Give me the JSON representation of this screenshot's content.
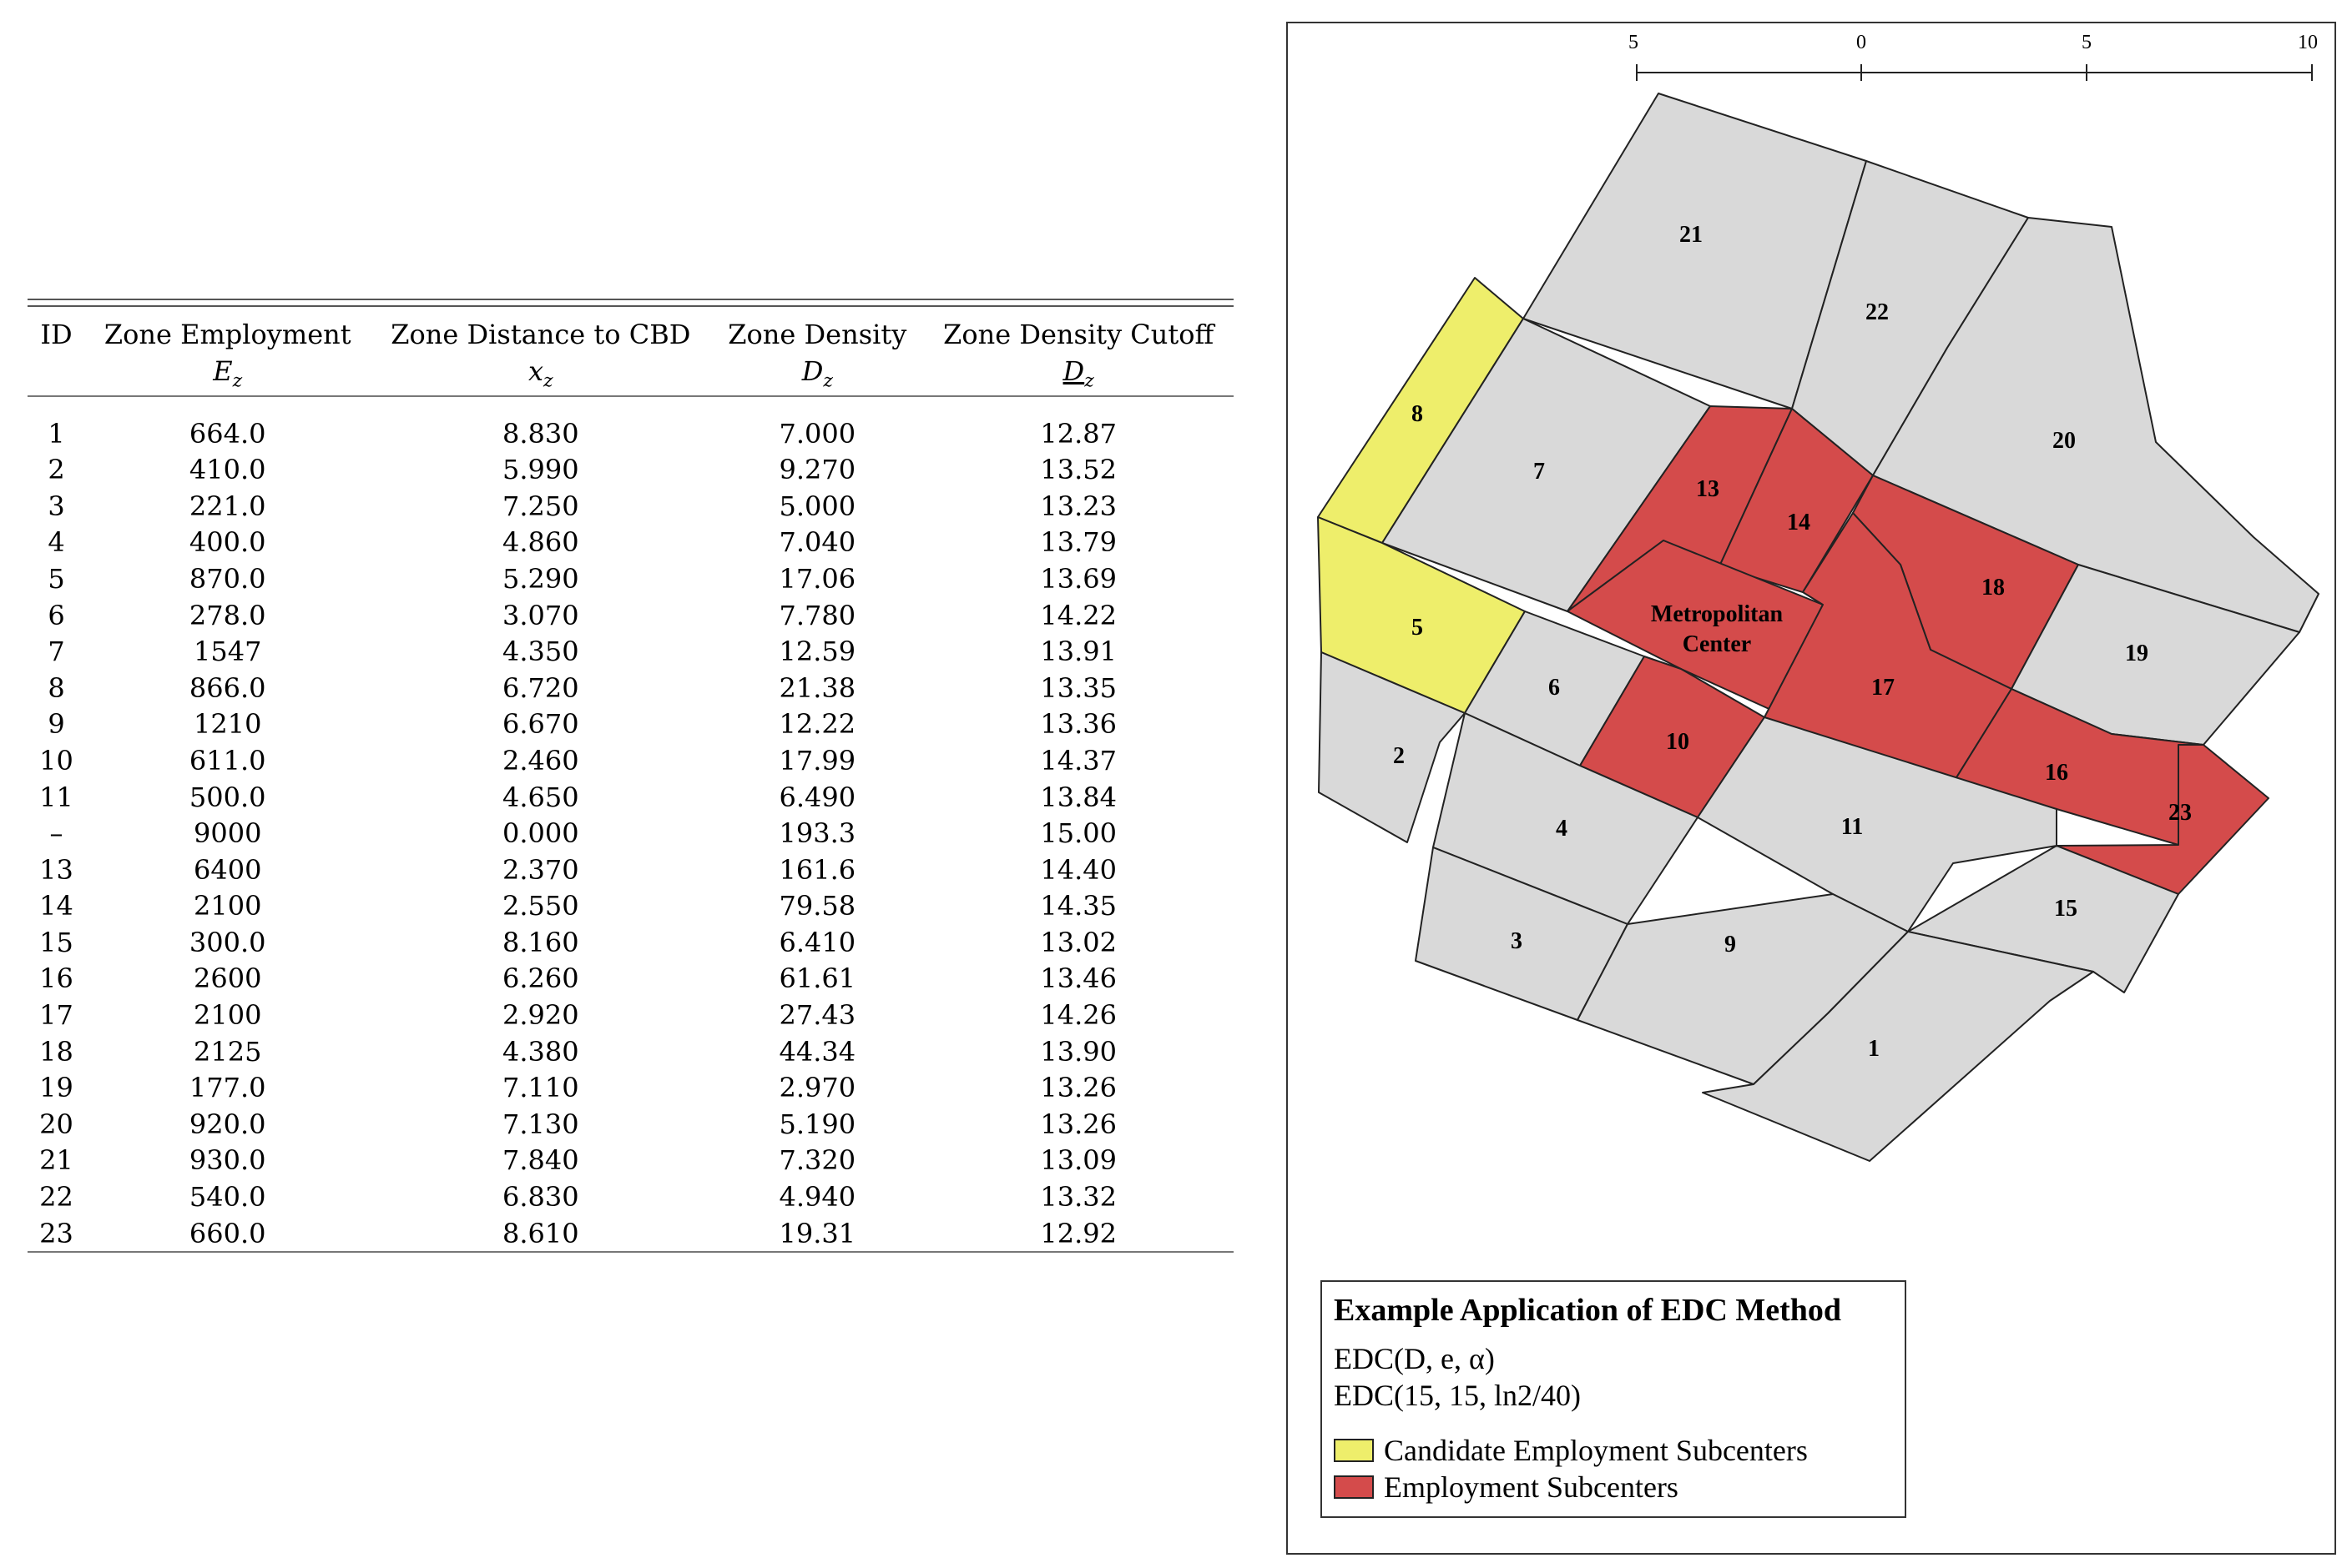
{
  "table": {
    "headers": [
      {
        "top": "ID",
        "sym": ""
      },
      {
        "top": "Zone Employment",
        "sym": "E",
        "sub": "z"
      },
      {
        "top": "Zone Distance to CBD",
        "sym": "x",
        "sub": "z"
      },
      {
        "top": "Zone Density",
        "sym": "D",
        "sub": "z"
      },
      {
        "top": "Zone Density Cutoff",
        "sym": "D",
        "sub": "z"
      }
    ],
    "rows": [
      [
        "1",
        "664.0",
        "8.830",
        "7.000",
        "12.87"
      ],
      [
        "2",
        "410.0",
        "5.990",
        "9.270",
        "13.52"
      ],
      [
        "3",
        "221.0",
        "7.250",
        "5.000",
        "13.23"
      ],
      [
        "4",
        "400.0",
        "4.860",
        "7.040",
        "13.79"
      ],
      [
        "5",
        "870.0",
        "5.290",
        "17.06",
        "13.69"
      ],
      [
        "6",
        "278.0",
        "3.070",
        "7.780",
        "14.22"
      ],
      [
        "7",
        "1547",
        "4.350",
        "12.59",
        "13.91"
      ],
      [
        "8",
        "866.0",
        "6.720",
        "21.38",
        "13.35"
      ],
      [
        "9",
        "1210",
        "6.670",
        "12.22",
        "13.36"
      ],
      [
        "10",
        "611.0",
        "2.460",
        "17.99",
        "14.37"
      ],
      [
        "11",
        "500.0",
        "4.650",
        "6.490",
        "13.84"
      ],
      [
        "–",
        "9000",
        "0.000",
        "193.3",
        "15.00"
      ],
      [
        "13",
        "6400",
        "2.370",
        "161.6",
        "14.40"
      ],
      [
        "14",
        "2100",
        "2.550",
        "79.58",
        "14.35"
      ],
      [
        "15",
        "300.0",
        "8.160",
        "6.410",
        "13.02"
      ],
      [
        "16",
        "2600",
        "6.260",
        "61.61",
        "13.46"
      ],
      [
        "17",
        "2100",
        "2.920",
        "27.43",
        "14.26"
      ],
      [
        "18",
        "2125",
        "4.380",
        "44.34",
        "13.90"
      ],
      [
        "19",
        "177.0",
        "7.110",
        "2.970",
        "13.26"
      ],
      [
        "20",
        "920.0",
        "7.130",
        "5.190",
        "13.26"
      ],
      [
        "21",
        "930.0",
        "7.840",
        "7.320",
        "13.09"
      ],
      [
        "22",
        "540.0",
        "6.830",
        "4.940",
        "13.32"
      ],
      [
        "23",
        "660.0",
        "8.610",
        "19.31",
        "12.92"
      ]
    ]
  },
  "map": {
    "scale_ticks": [
      "5",
      "0",
      "5",
      "10"
    ],
    "colors": {
      "zone": "#d9d9d9",
      "candidate": "#eeee6b",
      "subcenter": "#d44b4b"
    },
    "zones": [
      {
        "id": "21",
        "label": "21",
        "status": "none"
      },
      {
        "id": "22",
        "label": "22",
        "status": "none"
      },
      {
        "id": "20",
        "label": "20",
        "status": "none"
      },
      {
        "id": "8",
        "label": "8",
        "status": "candidate"
      },
      {
        "id": "7",
        "label": "7",
        "status": "none"
      },
      {
        "id": "13",
        "label": "13",
        "status": "subcenter"
      },
      {
        "id": "14",
        "label": "14",
        "status": "subcenter"
      },
      {
        "id": "18",
        "label": "18",
        "status": "subcenter"
      },
      {
        "id": "19",
        "label": "19",
        "status": "none"
      },
      {
        "id": "5",
        "label": "5",
        "status": "candidate"
      },
      {
        "id": "mc",
        "label_line1": "Metropolitan",
        "label_line2": "Center",
        "status": "subcenter"
      },
      {
        "id": "17",
        "label": "17",
        "status": "subcenter"
      },
      {
        "id": "6",
        "label": "6",
        "status": "none"
      },
      {
        "id": "10",
        "label": "10",
        "status": "subcenter"
      },
      {
        "id": "16",
        "label": "16",
        "status": "subcenter"
      },
      {
        "id": "23",
        "label": "23",
        "status": "subcenter"
      },
      {
        "id": "2",
        "label": "2",
        "status": "none"
      },
      {
        "id": "4",
        "label": "4",
        "status": "none"
      },
      {
        "id": "11",
        "label": "11",
        "status": "none"
      },
      {
        "id": "15",
        "label": "15",
        "status": "none"
      },
      {
        "id": "3",
        "label": "3",
        "status": "none"
      },
      {
        "id": "9",
        "label": "9",
        "status": "none"
      },
      {
        "id": "1",
        "label": "1",
        "status": "none"
      }
    ]
  },
  "legend": {
    "title": "Example Application of EDC Method",
    "line1": "EDC(D, e, α)",
    "line2": "EDC(15, 15, ln2/40)",
    "items": [
      {
        "label": "Candidate Employment Subcenters",
        "color": "#eeee6b"
      },
      {
        "label": "Employment Subcenters",
        "color": "#d44b4b"
      }
    ]
  }
}
